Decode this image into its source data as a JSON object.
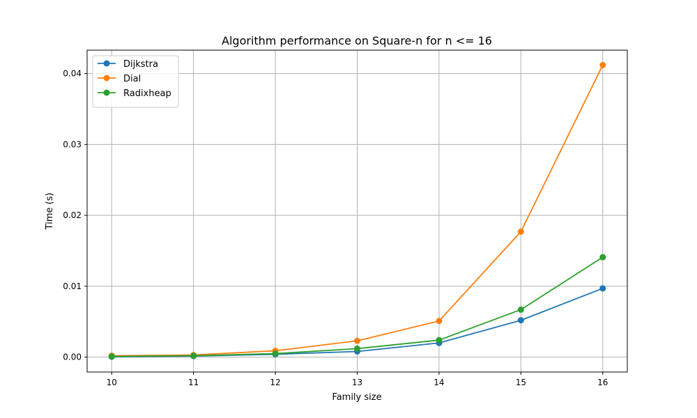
{
  "chart_data": {
    "type": "line",
    "title": "Algorithm performance on Square-n for n <= 16",
    "xlabel": "Family size",
    "ylabel": "Time (s)",
    "x": [
      10,
      11,
      12,
      13,
      14,
      15,
      16
    ],
    "xlim": [
      9.7,
      16.3
    ],
    "ylim": [
      -0.0021,
      0.0433
    ],
    "x_ticks": [
      10,
      11,
      12,
      13,
      14,
      15,
      16
    ],
    "y_ticks": [
      0.0,
      0.01,
      0.02,
      0.03,
      0.04
    ],
    "y_tick_labels": [
      "0.00",
      "0.01",
      "0.02",
      "0.03",
      "0.04"
    ],
    "grid": true,
    "legend_position": "top-left",
    "series": [
      {
        "name": "Dijkstra",
        "color": "#1f77b4",
        "marker": "circle",
        "values": [
          5e-05,
          0.00015,
          0.0004,
          0.0008,
          0.002,
          0.0052,
          0.0097
        ]
      },
      {
        "name": "Dial",
        "color": "#ff7f0e",
        "marker": "circle",
        "values": [
          0.0002,
          0.0003,
          0.0009,
          0.0023,
          0.0051,
          0.0177,
          0.0412
        ]
      },
      {
        "name": "Radixheap",
        "color": "#2ca02c",
        "marker": "circle",
        "values": [
          0.0001,
          0.0002,
          0.0005,
          0.0012,
          0.0024,
          0.0067,
          0.0141
        ]
      }
    ]
  }
}
